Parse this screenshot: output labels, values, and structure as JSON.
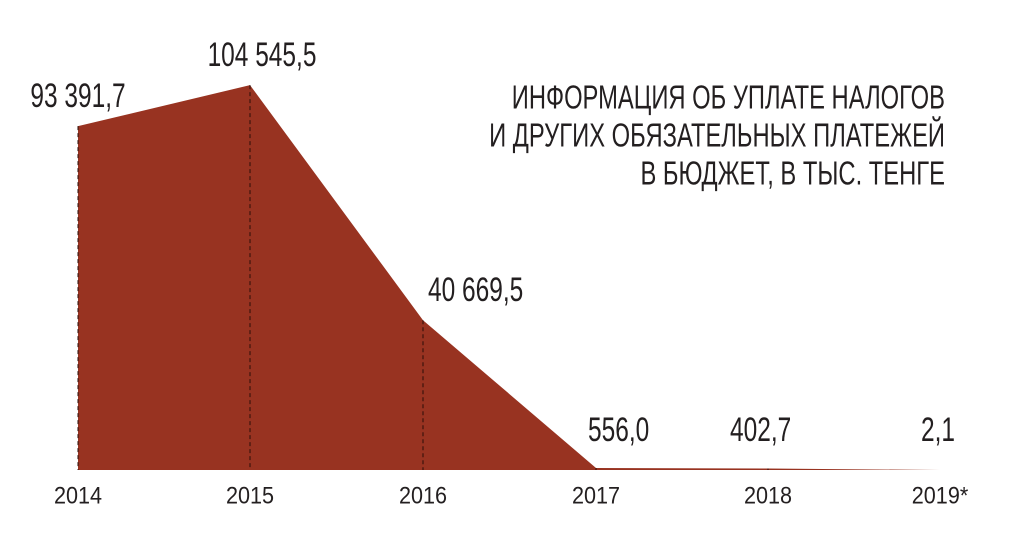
{
  "chart_data": {
    "type": "area",
    "title": [
      "ИНФОРМАЦИЯ ОБ УПЛАТЕ НАЛОГОВ",
      "И ДРУГИХ ОБЯЗАТЕЛЬНЫХ ПЛАТЕЖЕЙ",
      "В БЮДЖЕТ, В ТЫС. ТЕНГЕ"
    ],
    "categories": [
      "2014",
      "2015",
      "2016",
      "2017",
      "2018",
      "2019*"
    ],
    "values": [
      93391.7,
      104545.5,
      40669.5,
      556.0,
      402.7,
      2.1
    ],
    "value_labels": [
      "93 391,7",
      "104 545,5",
      "40 669,5",
      "556,0",
      "402,7",
      "2,1"
    ],
    "color": "#983321",
    "ylim": [
      0,
      110000
    ]
  }
}
